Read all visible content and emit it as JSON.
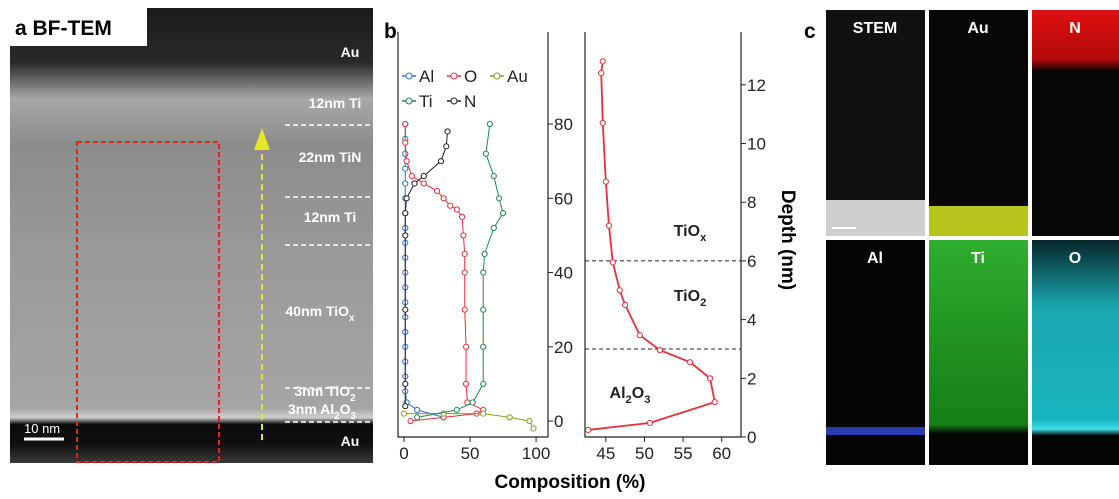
{
  "panel_a": {
    "label": "a BF-TEM",
    "layers": [
      [
        {
          "t": "Au"
        }
      ],
      [
        {
          "t": "12nm Ti"
        }
      ],
      [
        {
          "t": "22nm TiN"
        }
      ],
      [
        {
          "t": "12nm Ti"
        }
      ],
      [
        {
          "t": "40nm TiO"
        },
        {
          "sub": "x"
        }
      ],
      [
        {
          "t": "3nm TiO"
        },
        {
          "sub": "2"
        }
      ],
      [
        {
          "t": "3nm Al"
        },
        {
          "sub": "2"
        },
        {
          "t": "O"
        },
        {
          "sub": "3"
        }
      ],
      [
        {
          "t": "Au"
        }
      ]
    ],
    "scale_bar": "10 nm"
  },
  "panel_b": {
    "label": "b",
    "xlabel": "Composition (%)"
  },
  "panel_c": {
    "label": "c",
    "maps": [
      "STEM",
      "Au",
      "N",
      "Al",
      "Ti",
      "O"
    ]
  },
  "chart_data": [
    {
      "type": "scatter",
      "xlim": [
        -4.5,
        109
      ],
      "ylim": [
        -4.3,
        104.8
      ],
      "xticks": [
        0,
        50,
        100
      ],
      "yticks": [
        0,
        20,
        40,
        60,
        80
      ],
      "legend": "top-left",
      "series": [
        {
          "name": "Al",
          "color": "#2a6fd6",
          "x": [
            30,
            10,
            2,
            1,
            1,
            1,
            1,
            1,
            1,
            1,
            1,
            1,
            1,
            1,
            1,
            1,
            1,
            1,
            1,
            1,
            1,
            1
          ],
          "y": [
            1,
            3,
            5,
            8,
            12,
            16,
            20,
            24,
            28,
            32,
            36,
            40,
            44,
            48,
            52,
            56,
            60,
            64,
            68,
            72,
            76,
            80
          ]
        },
        {
          "name": "O",
          "color": "#e8303a",
          "x": [
            5,
            30,
            55,
            60,
            48,
            47,
            47,
            46,
            46,
            46,
            45,
            44,
            40,
            35,
            30,
            25,
            15,
            6,
            2,
            1,
            1
          ],
          "y": [
            0,
            1,
            2,
            3,
            5,
            10,
            20,
            30,
            40,
            45,
            50,
            55,
            57,
            58,
            60,
            62,
            64,
            66,
            70,
            75,
            80
          ]
        },
        {
          "name": "Au",
          "color": "#8a9a1e",
          "x": [
            0,
            30,
            60,
            80,
            95,
            98
          ],
          "y": [
            2,
            2,
            2,
            1,
            0,
            -2
          ]
        },
        {
          "name": "Ti",
          "color": "#1f8a4a",
          "x": [
            10,
            40,
            52,
            60,
            60,
            60,
            60,
            61,
            68,
            75,
            72,
            68,
            62,
            65
          ],
          "y": [
            1,
            3,
            5,
            10,
            20,
            30,
            40,
            45,
            52,
            56,
            60,
            66,
            72,
            80
          ]
        },
        {
          "name": "N",
          "color": "#222222",
          "x": [
            1,
            1,
            1,
            1,
            1,
            2,
            8,
            15,
            28,
            32,
            33
          ],
          "y": [
            4,
            10,
            30,
            50,
            56,
            60,
            64,
            66,
            70,
            74,
            78
          ]
        }
      ]
    },
    {
      "type": "line",
      "ylabel": "Depth (nm)",
      "xlim": [
        42.3,
        62.5
      ],
      "ylim": [
        0,
        13.8
      ],
      "xticks": [
        45,
        50,
        55,
        60
      ],
      "yticks": [
        0,
        2,
        4,
        6,
        8,
        10,
        12
      ],
      "reference_lines": [
        6,
        3
      ],
      "series": [
        {
          "color": "#e8303a",
          "x": [
            42.7,
            50.7,
            59.1,
            58.5,
            55.9,
            52.0,
            49.4,
            47.5,
            46.8,
            45.9,
            45.4,
            45.0,
            44.6,
            44.4,
            44.6
          ],
          "y": [
            0.24,
            0.48,
            1.19,
            2.0,
            2.55,
            2.96,
            3.47,
            4.5,
            5.0,
            5.95,
            7.2,
            8.7,
            10.7,
            12.4,
            12.8
          ]
        }
      ],
      "annotations": [
        [
          {
            "t": "TiO"
          },
          {
            "sub": "x"
          }
        ],
        [
          {
            "t": "TiO"
          },
          {
            "sub": "2"
          }
        ],
        [
          {
            "t": "Al"
          },
          {
            "sub": "2"
          },
          {
            "t": "O"
          },
          {
            "sub": "3"
          }
        ]
      ]
    }
  ]
}
